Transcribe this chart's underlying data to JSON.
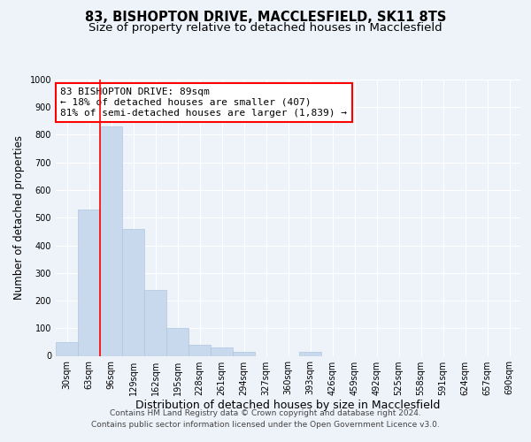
{
  "title_line1": "83, BISHOPTON DRIVE, MACCLESFIELD, SK11 8TS",
  "title_line2": "Size of property relative to detached houses in Macclesfield",
  "xlabel": "Distribution of detached houses by size in Macclesfield",
  "ylabel": "Number of detached properties",
  "footer_line1": "Contains HM Land Registry data © Crown copyright and database right 2024.",
  "footer_line2": "Contains public sector information licensed under the Open Government Licence v3.0.",
  "bar_labels": [
    "30sqm",
    "63sqm",
    "96sqm",
    "129sqm",
    "162sqm",
    "195sqm",
    "228sqm",
    "261sqm",
    "294sqm",
    "327sqm",
    "360sqm",
    "393sqm",
    "426sqm",
    "459sqm",
    "492sqm",
    "525sqm",
    "558sqm",
    "591sqm",
    "624sqm",
    "657sqm",
    "690sqm"
  ],
  "bar_values": [
    50,
    530,
    830,
    460,
    240,
    100,
    40,
    30,
    15,
    0,
    0,
    15,
    0,
    0,
    0,
    0,
    0,
    0,
    0,
    0,
    0
  ],
  "bar_color": "#c9d9ed",
  "bar_edge_color": "#aec6e0",
  "vline_x": 1.5,
  "vline_color": "red",
  "annotation_text": "83 BISHOPTON DRIVE: 89sqm\n← 18% of detached houses are smaller (407)\n81% of semi-detached houses are larger (1,839) →",
  "annotation_box_color": "white",
  "annotation_box_edge_color": "red",
  "ylim": [
    0,
    1000
  ],
  "yticks": [
    0,
    100,
    200,
    300,
    400,
    500,
    600,
    700,
    800,
    900,
    1000
  ],
  "background_color": "#eef2f9",
  "plot_background_color": "#eef2f9",
  "grid_color": "white",
  "title_fontsize": 10.5,
  "subtitle_fontsize": 9.5,
  "ylabel_fontsize": 8.5,
  "xlabel_fontsize": 9,
  "tick_fontsize": 7,
  "annotation_fontsize": 8,
  "footer_fontsize": 6.5
}
